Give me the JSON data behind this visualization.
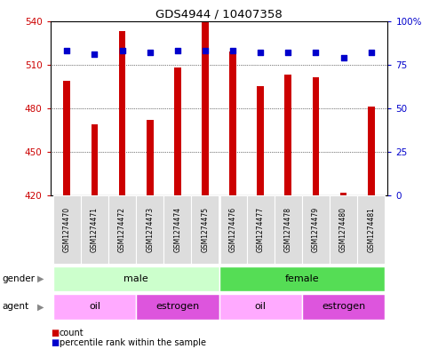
{
  "title": "GDS4944 / 10407358",
  "samples": [
    "GSM1274470",
    "GSM1274471",
    "GSM1274472",
    "GSM1274473",
    "GSM1274474",
    "GSM1274475",
    "GSM1274476",
    "GSM1274477",
    "GSM1274478",
    "GSM1274479",
    "GSM1274480",
    "GSM1274481"
  ],
  "counts": [
    499,
    469,
    533,
    472,
    508,
    540,
    519,
    495,
    503,
    501,
    422,
    481
  ],
  "percentile": [
    83,
    81,
    83,
    82,
    83,
    83,
    83,
    82,
    82,
    82,
    79,
    82
  ],
  "ymin": 420,
  "ymax": 540,
  "yticks": [
    420,
    450,
    480,
    510,
    540
  ],
  "right_yticks": [
    0,
    25,
    50,
    75,
    100
  ],
  "bar_color": "#cc0000",
  "dot_color": "#0000cc",
  "gender": [
    {
      "label": "male",
      "start": 0,
      "end": 6,
      "color": "#ccffcc"
    },
    {
      "label": "female",
      "start": 6,
      "end": 12,
      "color": "#55dd55"
    }
  ],
  "agent": [
    {
      "label": "oil",
      "start": 0,
      "end": 3,
      "color": "#ffaaff"
    },
    {
      "label": "estrogen",
      "start": 3,
      "end": 6,
      "color": "#dd55dd"
    },
    {
      "label": "oil",
      "start": 6,
      "end": 9,
      "color": "#ffaaff"
    },
    {
      "label": "estrogen",
      "start": 9,
      "end": 12,
      "color": "#dd55dd"
    }
  ],
  "bg_color": "#ffffff",
  "bar_color_legend": "#cc0000",
  "dot_color_legend": "#0000cc"
}
